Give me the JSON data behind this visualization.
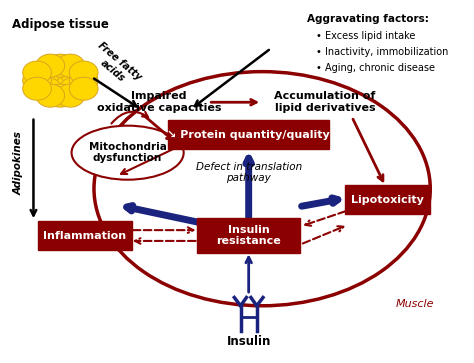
{
  "bg_color": "#ffffff",
  "dark_red": "#8B0000",
  "navy_blue": "#1a237e",
  "black": "#000000",
  "box_bg": "#8B0000",
  "box_text": "#ffffff",
  "aggravating_title": "Aggravating factors:",
  "aggravating_bullets": [
    "Excess lipid intake",
    "Inactivity, immobilization",
    "Aging, chronic disease"
  ],
  "labels": {
    "adipose_tissue": "Adipose tissue",
    "free_fatty_acids": "Free fatty\nacids",
    "adipokines": "Adipokines",
    "impaired": "Impaired\noxidative capacities",
    "accumulation": "Accumulation of\nlipid derivatives",
    "mitochondria": "Mitochondria\ndysfunction",
    "protein": "↘ Protein quantity/quality",
    "defect": "Defect in translation\npathway",
    "inflammation": "Inflammation",
    "insulin_resistance": "Insulin\nresistance",
    "lipotoxicity": "Lipotoxicity",
    "insulin": "Insulin",
    "muscle": "Muscle"
  }
}
